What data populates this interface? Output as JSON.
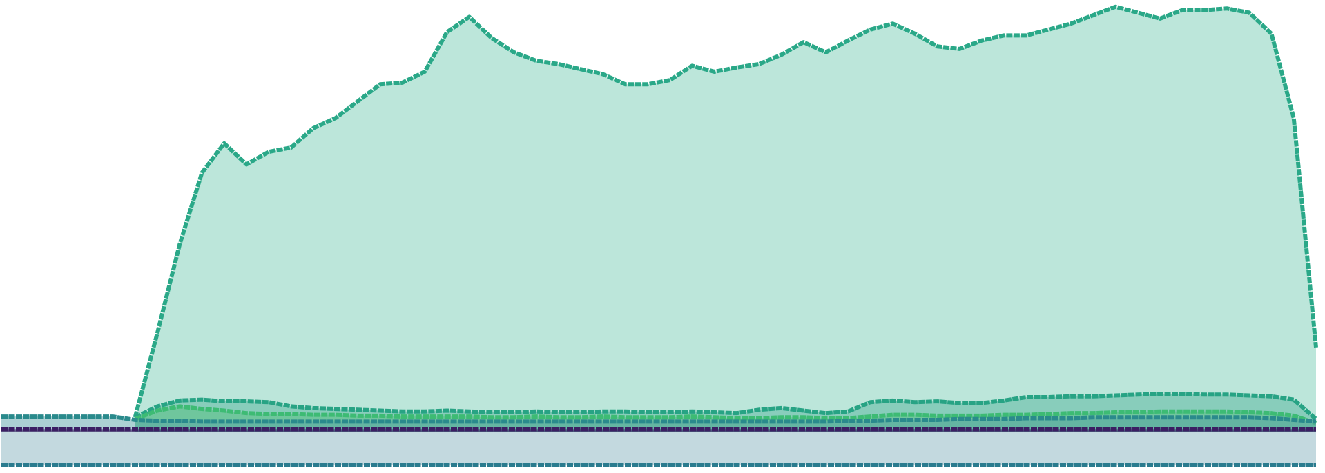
{
  "chart_data": {
    "type": "area",
    "ylim": [
      -49,
      512
    ],
    "series": [
      {
        "color": "#2aa888",
        "fill_color": "#bce6da",
        "fill_opacity": 1,
        "values": [
          null,
          null,
          null,
          null,
          null,
          null,
          17,
          117,
          222,
          307,
          342,
          317,
          332,
          337,
          360,
          372,
          392,
          412,
          414,
          427,
          474,
          492,
          467,
          450,
          440,
          436,
          430,
          424,
          412,
          412,
          417,
          434,
          427,
          432,
          436,
          447,
          462,
          450,
          464,
          477,
          484,
          472,
          457,
          454,
          464,
          470,
          470,
          477,
          484,
          494,
          504,
          497,
          490,
          500,
          500,
          502,
          497,
          472,
          372,
          100
        ]
      },
      {
        "color": "#27a384",
        "fill_color": "#54b39c",
        "fill_opacity": 0.5,
        "values": [
          null,
          null,
          null,
          null,
          null,
          null,
          17,
          30,
          37,
          38,
          36,
          36,
          35,
          30,
          28,
          27,
          26,
          25,
          24,
          24,
          25,
          24,
          23,
          23,
          24,
          23,
          23,
          24,
          24,
          23,
          23,
          24,
          23,
          22,
          26,
          28,
          25,
          22,
          24,
          35,
          37,
          35,
          36,
          34,
          34,
          37,
          41,
          41,
          42,
          42,
          43,
          44,
          45,
          45,
          44,
          44,
          43,
          42,
          38,
          15
        ]
      },
      {
        "color": "#3dbb74",
        "fill_color": "#55c080",
        "fill_opacity": 0.5,
        "values": [
          null,
          null,
          null,
          null,
          null,
          null,
          15,
          25,
          30,
          27,
          25,
          22,
          21,
          21,
          20,
          20,
          19,
          19,
          18,
          18,
          18,
          18,
          17,
          17,
          18,
          17,
          17,
          18,
          17,
          17,
          17,
          18,
          17,
          16,
          16,
          17,
          17,
          16,
          16,
          18,
          20,
          20,
          19,
          19,
          19,
          20,
          20,
          21,
          22,
          22,
          23,
          23,
          24,
          24,
          24,
          24,
          23,
          22,
          19,
          10
        ]
      },
      {
        "color": "#2a8a8c",
        "fill_color": "#5aa3a8",
        "fill_opacity": 0.5,
        "values": [
          18,
          18,
          18,
          18,
          18,
          18,
          14,
          13,
          13,
          12,
          12,
          12,
          12,
          12,
          12,
          12,
          12,
          12,
          12,
          12,
          12,
          12,
          12,
          12,
          12,
          12,
          12,
          12,
          12,
          12,
          12,
          12,
          12,
          12,
          12,
          12,
          12,
          12,
          13,
          13,
          14,
          14,
          14,
          15,
          15,
          15,
          16,
          16,
          16,
          17,
          17,
          17,
          17,
          17,
          17,
          17,
          17,
          16,
          14,
          12
        ]
      },
      {
        "color": "#2a7b8e",
        "fill_color": "#c3d9df",
        "fill_opacity": 1,
        "values": [
          -40,
          -40,
          -40,
          -40,
          -40,
          -40,
          -40,
          -40,
          -40,
          -40,
          -40,
          -40,
          -40,
          -40,
          -40,
          -40,
          -40,
          -40,
          -40,
          -40,
          -40,
          -40,
          -40,
          -40,
          -40,
          -40,
          -40,
          -40,
          -40,
          -40,
          -40,
          -40,
          -40,
          -40,
          -40,
          -40,
          -40,
          -40,
          -40,
          -40,
          -40,
          -40,
          -40,
          -40,
          -40,
          -40,
          -40,
          -40,
          -40,
          -40,
          -40,
          -40,
          -40,
          -40,
          -40,
          -40,
          -40,
          -40,
          -40,
          -40
        ]
      },
      {
        "color": "#3b1f63",
        "fill_color": "#3b1f63",
        "fill_opacity": 0.6,
        "values": [
          3,
          3,
          3,
          3,
          3,
          3,
          3,
          3,
          3,
          3,
          3,
          3,
          3,
          3,
          3,
          3,
          3,
          3,
          3,
          3,
          3,
          3,
          3,
          3,
          3,
          3,
          3,
          3,
          3,
          3,
          3,
          3,
          3,
          3,
          3,
          3,
          3,
          3,
          3,
          3,
          3,
          3,
          3,
          3,
          3,
          3,
          3,
          3,
          3,
          3,
          3,
          3,
          3,
          3,
          3,
          3,
          3,
          3,
          3,
          3
        ]
      }
    ]
  }
}
